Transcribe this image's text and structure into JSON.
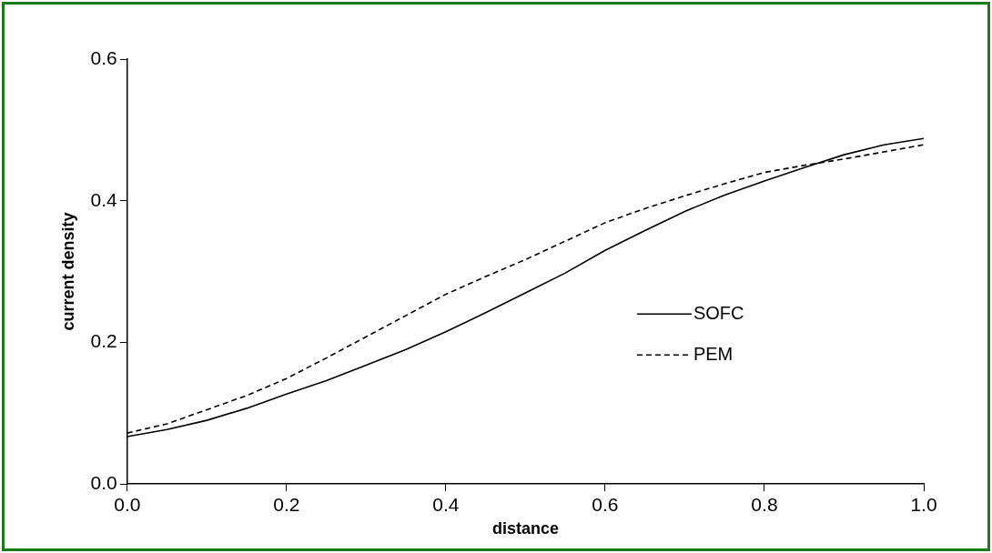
{
  "chart_data": {
    "type": "line",
    "xlabel": "distance",
    "ylabel": "current density",
    "x": [
      0,
      0.05,
      0.1,
      0.15,
      0.2,
      0.25,
      0.3,
      0.35,
      0.4,
      0.45,
      0.5,
      0.55,
      0.6,
      0.65,
      0.7,
      0.75,
      0.8,
      0.85,
      0.9,
      0.95,
      1.0
    ],
    "series": [
      {
        "name": "SOFC",
        "color": "#000000",
        "line_style": "solid",
        "values": [
          0.067,
          0.077,
          0.09,
          0.107,
          0.127,
          0.146,
          0.168,
          0.19,
          0.215,
          0.242,
          0.27,
          0.298,
          0.33,
          0.358,
          0.385,
          0.408,
          0.428,
          0.447,
          0.465,
          0.479,
          0.488
        ]
      },
      {
        "name": "PEM",
        "color": "#000000",
        "line_style": "dashed",
        "values": [
          0.072,
          0.085,
          0.105,
          0.125,
          0.149,
          0.178,
          0.208,
          0.238,
          0.268,
          0.293,
          0.317,
          0.343,
          0.369,
          0.389,
          0.407,
          0.424,
          0.44,
          0.45,
          0.459,
          0.469,
          0.479
        ]
      }
    ],
    "xlim": [
      0,
      1.0
    ],
    "xticks": [
      {
        "value": 0,
        "label": "0.0"
      },
      0.2,
      0.4,
      0.6,
      0.8,
      {
        "value": 1,
        "label": "1.0"
      }
    ],
    "ylim": [
      0,
      0.6
    ],
    "yticks": [
      {
        "value": 0,
        "label": "0.0"
      },
      0.2,
      0.4,
      0.6
    ],
    "grid": false,
    "legend": "center right",
    "marker": "none"
  }
}
